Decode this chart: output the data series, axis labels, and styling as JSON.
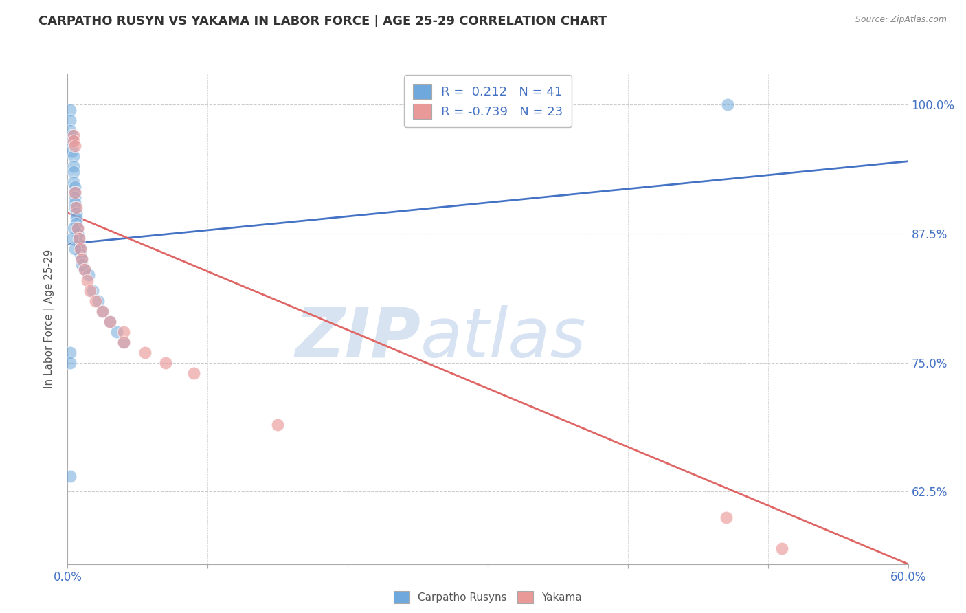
{
  "title": "CARPATHO RUSYN VS YAKAMA IN LABOR FORCE | AGE 25-29 CORRELATION CHART",
  "source": "Source: ZipAtlas.com",
  "ylabel": "In Labor Force | Age 25-29",
  "xlim": [
    0.0,
    0.6
  ],
  "ylim": [
    0.555,
    1.03
  ],
  "xticks": [
    0.0,
    0.1,
    0.2,
    0.3,
    0.4,
    0.5,
    0.6
  ],
  "xticklabels": [
    "0.0%",
    "",
    "",
    "",
    "",
    "",
    "60.0%"
  ],
  "yticks_right": [
    0.625,
    0.75,
    0.875,
    1.0
  ],
  "yticks_right_labels": [
    "62.5%",
    "75.0%",
    "87.5%",
    "100.0%"
  ],
  "r_blue": 0.212,
  "n_blue": 41,
  "r_pink": -0.739,
  "n_pink": 23,
  "blue_color": "#6fa8dc",
  "pink_color": "#ea9999",
  "trendline_blue": "#4472c4",
  "trendline_pink": "#e06666",
  "watermark_zip": "ZIP",
  "watermark_atlas": "atlas",
  "blue_trend_x": [
    0.0,
    0.6
  ],
  "blue_trend_y": [
    0.865,
    0.945
  ],
  "pink_trend_x": [
    0.0,
    0.6
  ],
  "pink_trend_y": [
    0.895,
    0.555
  ],
  "blue_scatter_x": [
    0.002,
    0.002,
    0.002,
    0.003,
    0.003,
    0.003,
    0.004,
    0.004,
    0.004,
    0.004,
    0.005,
    0.005,
    0.005,
    0.005,
    0.005,
    0.006,
    0.006,
    0.006,
    0.007,
    0.007,
    0.008,
    0.008,
    0.009,
    0.009,
    0.01,
    0.01,
    0.012,
    0.015,
    0.018,
    0.022,
    0.025,
    0.03,
    0.035,
    0.04,
    0.002,
    0.002,
    0.003,
    0.004,
    0.005,
    0.471,
    0.002
  ],
  "blue_scatter_y": [
    0.995,
    0.985,
    0.975,
    0.97,
    0.965,
    0.955,
    0.95,
    0.94,
    0.935,
    0.925,
    0.92,
    0.915,
    0.91,
    0.905,
    0.9,
    0.895,
    0.89,
    0.885,
    0.88,
    0.875,
    0.87,
    0.865,
    0.86,
    0.855,
    0.85,
    0.845,
    0.84,
    0.835,
    0.82,
    0.81,
    0.8,
    0.79,
    0.78,
    0.77,
    0.76,
    0.75,
    0.87,
    0.88,
    0.86,
    1.0,
    0.64
  ],
  "pink_scatter_x": [
    0.004,
    0.004,
    0.005,
    0.005,
    0.006,
    0.007,
    0.008,
    0.009,
    0.01,
    0.012,
    0.014,
    0.016,
    0.02,
    0.025,
    0.03,
    0.04,
    0.04,
    0.055,
    0.07,
    0.09,
    0.15,
    0.47,
    0.51
  ],
  "pink_scatter_y": [
    0.97,
    0.965,
    0.96,
    0.915,
    0.9,
    0.88,
    0.87,
    0.86,
    0.85,
    0.84,
    0.83,
    0.82,
    0.81,
    0.8,
    0.79,
    0.78,
    0.77,
    0.76,
    0.75,
    0.74,
    0.69,
    0.6,
    0.57
  ]
}
